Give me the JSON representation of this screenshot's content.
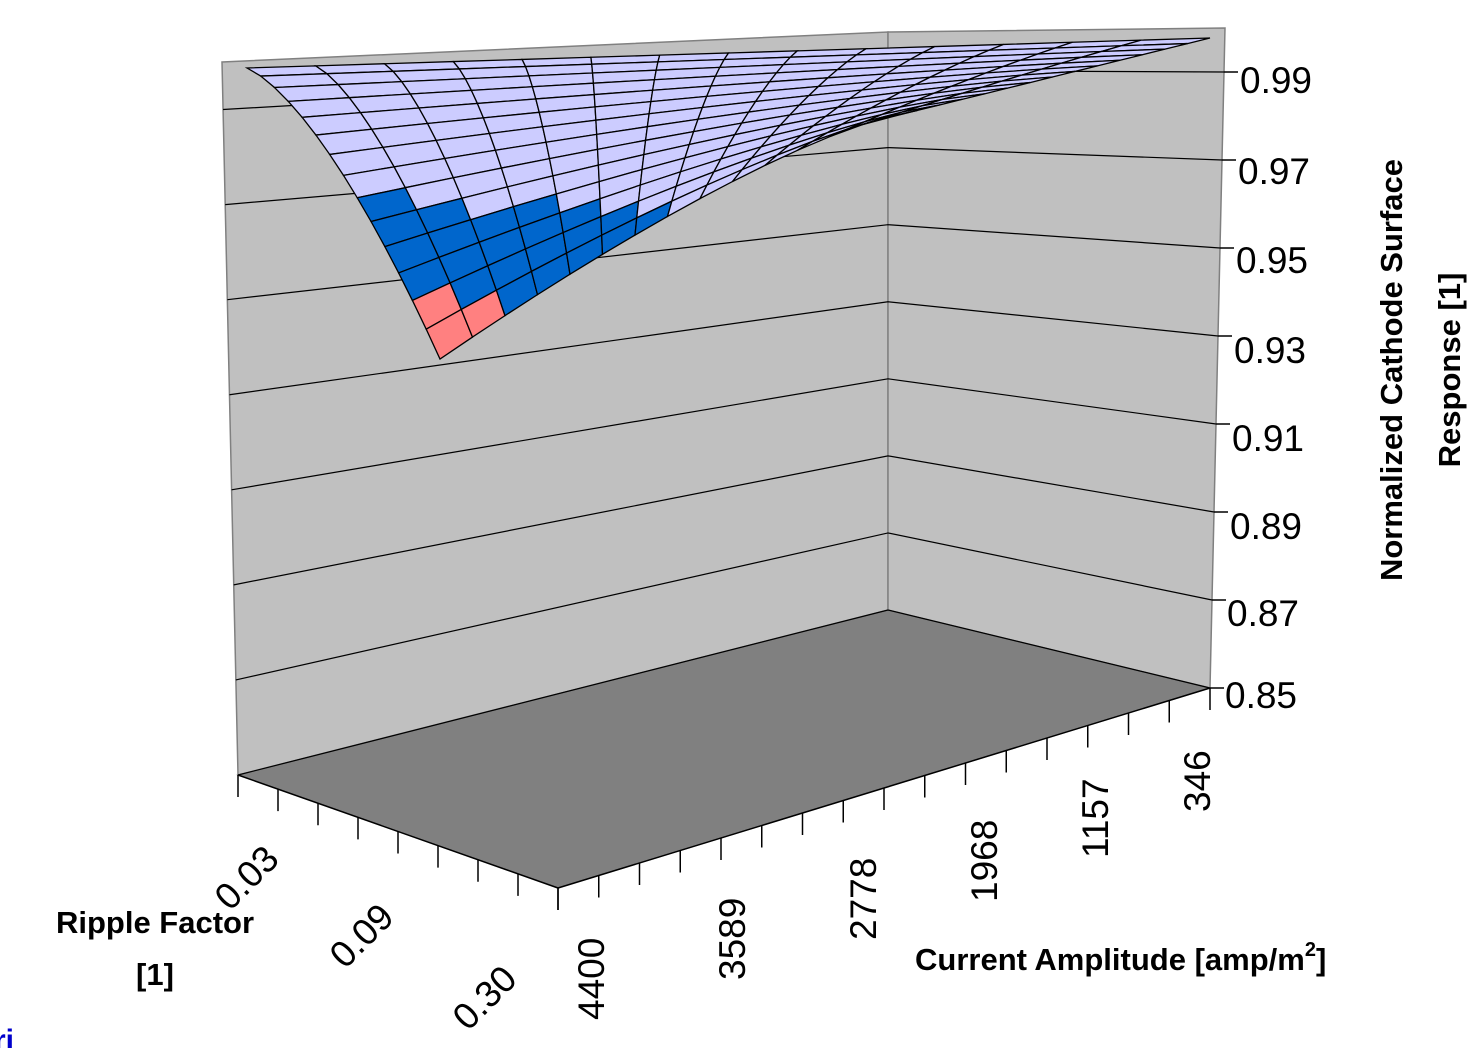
{
  "chart_data": {
    "type": "surface3d",
    "title": "",
    "x_axis": {
      "title": "Current Amplitude [amp/m",
      "title_sup": "2",
      "title_end": "]",
      "tick_labels": [
        "4400",
        "3589",
        "2778",
        "1968",
        "1157",
        "346"
      ]
    },
    "y_axis": {
      "title_line1": "Ripple Factor",
      "title_line2": "[1]",
      "tick_labels": [
        "0.03",
        "0.09",
        "0.30"
      ]
    },
    "z_axis": {
      "title_line1": "Normalized Cathode Surface",
      "title_line2": "Response [1]",
      "tick_labels": [
        "0.99",
        "0.97",
        "0.95",
        "0.93",
        "0.91",
        "0.89",
        "0.87",
        "0.85"
      ],
      "range": [
        0.85,
        1.0
      ]
    },
    "legend_bands": [
      {
        "range": [
          0.97,
          1.0
        ],
        "color": "#ccccff"
      },
      {
        "range": [
          0.95,
          0.97
        ],
        "color": "#0066cc"
      },
      {
        "range": [
          0.93,
          0.95
        ],
        "color": "#ff8080"
      }
    ],
    "surface_min": 0.935,
    "grid": true
  },
  "corner_glyph": "ri"
}
